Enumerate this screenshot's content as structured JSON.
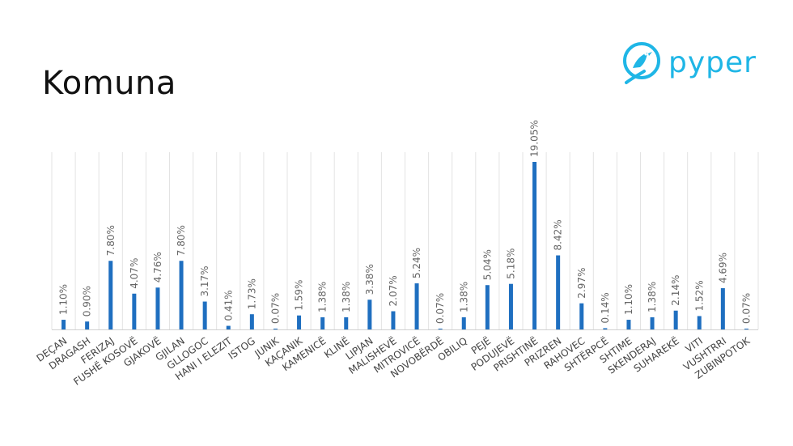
{
  "slide": {
    "title": "Komuna"
  },
  "logo": {
    "text": "pyper",
    "icon": "bird-icon",
    "color": "#1fb6e6"
  },
  "chart_data": {
    "type": "bar",
    "title": "",
    "xlabel": "",
    "ylabel": "",
    "ylim": [
      0,
      20
    ],
    "grid": "vertical",
    "bar_color": "#1f6fc0",
    "categories": [
      "DEÇAN",
      "DRAGASH",
      "FERIZAJ",
      "FUSHË KOSOVË",
      "GJAKOVË",
      "GJILAN",
      "GLLOGOC",
      "HANI I ELEZIT",
      "ISTOG",
      "JUNIK",
      "KAÇANIK",
      "KAMENICË",
      "KLINË",
      "LIPJAN",
      "MALISHEVË",
      "MITROVICË",
      "NOVOBËRDË",
      "OBILIQ",
      "PEJË",
      "PODUJEVË",
      "PRISHTINË",
      "PRIZREN",
      "RAHOVEC",
      "SHTËRPCË",
      "SHTIME",
      "SKENDERAJ",
      "SUHAREKË",
      "VITI",
      "VUSHTRRI",
      "ZUBINPOTOK"
    ],
    "values": [
      1.1,
      0.9,
      7.8,
      4.07,
      4.76,
      7.8,
      3.17,
      0.41,
      1.73,
      0.07,
      1.59,
      1.38,
      1.38,
      3.38,
      2.07,
      5.24,
      0.07,
      1.38,
      5.04,
      5.18,
      19.05,
      8.42,
      2.97,
      0.14,
      1.1,
      1.38,
      2.14,
      1.52,
      4.69,
      0.07
    ],
    "labels": [
      "1.10%",
      "0.90%",
      "7.80%",
      "4.07%",
      "4.76%",
      "7.80%",
      "3.17%",
      "0.41%",
      "1.73%",
      "0.07%",
      "1.59%",
      "1.38%",
      "1.38%",
      "3.38%",
      "2.07%",
      "5.24%",
      "0.07%",
      "1.38%",
      "5.04%",
      "5.18%",
      "19.05%",
      "8.42%",
      "2.97%",
      "0.14%",
      "1.10%",
      "1.38%",
      "2.14%",
      "1.52%",
      "4.69%",
      "0.07%"
    ]
  }
}
